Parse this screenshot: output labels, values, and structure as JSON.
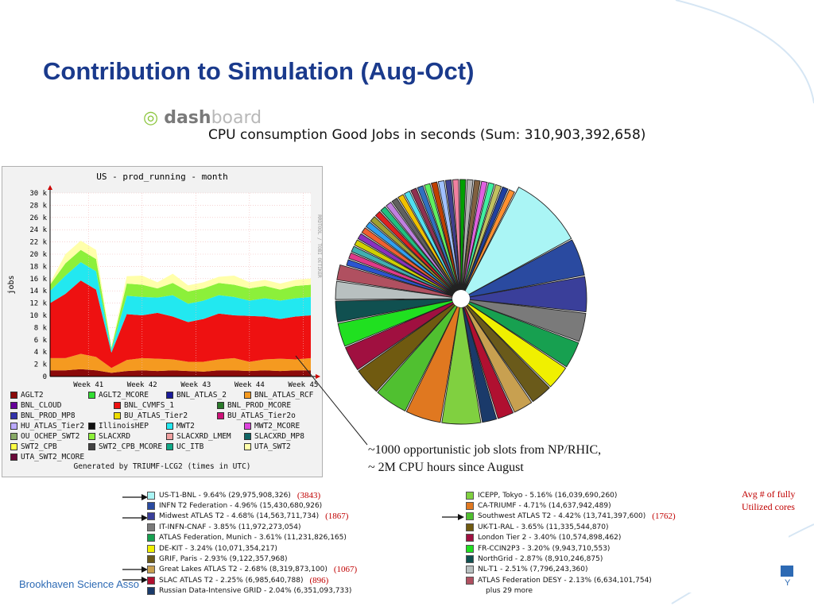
{
  "slide": {
    "title": "Contribution to Simulation (Aug-Oct)",
    "footer": "Brookhaven Science Asso",
    "footer_logo_text": "Y",
    "annotation_lines": [
      "~1000 opportunistic job slots from NP/RHIC,",
      "~ 2M CPU hours since August"
    ],
    "avg_note_lines": [
      "Avg # of fully",
      "Utilized cores"
    ]
  },
  "dashboard_logo": {
    "part1": "dash",
    "part2": "board",
    "icon_name": "dashboard-swirl-icon"
  },
  "chart_data": [
    {
      "type": "area",
      "title": "US - prod_running - month",
      "ylabel": "jobs",
      "xlabel": "",
      "ylim": [
        0,
        30000
      ],
      "y_ticks": [
        "0",
        "2 k",
        "4 k",
        "6 k",
        "8 k",
        "10 k",
        "12 k",
        "14 k",
        "16 k",
        "18 k",
        "20 k",
        "22 k",
        "24 k",
        "26 k",
        "28 k",
        "30 k"
      ],
      "x_ticks": [
        "Week 41",
        "Week 42",
        "Week 43",
        "Week 44",
        "Week 45"
      ],
      "side_label": "RRDTOOL / TOBI OETIKER",
      "note": "Generated by TRIUMF-LCG2 (times in UTC)",
      "grid": true,
      "x": [
        0,
        2,
        4,
        6,
        8,
        10,
        12,
        14,
        16,
        18,
        20,
        22,
        24,
        26,
        28,
        30,
        32,
        34
      ],
      "series": [
        {
          "name": "AGLT2",
          "color": "#8b0a0a",
          "values": [
            1000,
            1000,
            1200,
            1000,
            600,
            900,
            1000,
            900,
            1000,
            900,
            800,
            1000,
            1000,
            900,
            1000,
            900,
            1000,
            1000
          ]
        },
        {
          "name": "BNL_ATLAS_RCF",
          "color": "#f59a20",
          "values": [
            2000,
            2000,
            2500,
            2200,
            800,
            1800,
            2000,
            2000,
            1800,
            1500,
            1600,
            1800,
            2000,
            1500,
            1800,
            2000,
            1800,
            2000
          ]
        },
        {
          "name": "BNL_CVMFS_1",
          "color": "#ee1111",
          "values": [
            9000,
            10500,
            12000,
            11000,
            2500,
            7500,
            7000,
            7500,
            7000,
            6500,
            7000,
            7500,
            7000,
            7500,
            7000,
            6500,
            7000,
            7000
          ]
        },
        {
          "name": "MWT2",
          "color": "#22e8f0",
          "values": [
            2000,
            3000,
            3000,
            3000,
            500,
            3000,
            3000,
            2500,
            3500,
            3000,
            3000,
            3000,
            3000,
            2500,
            3000,
            3000,
            3000,
            3000
          ]
        },
        {
          "name": "SLACXRD",
          "color": "#8cf03a",
          "values": [
            1000,
            2000,
            2000,
            2000,
            300,
            2000,
            2000,
            1500,
            2000,
            2000,
            2000,
            2000,
            2000,
            2000,
            2000,
            1800,
            2000,
            2000
          ]
        },
        {
          "name": "UTA_SWT2",
          "color": "#ffffaa",
          "values": [
            300,
            1500,
            1500,
            1500,
            200,
            1200,
            1500,
            1000,
            1500,
            1000,
            1000,
            1000,
            1500,
            1000,
            1000,
            1000,
            1000,
            1000
          ]
        }
      ],
      "legend": [
        {
          "name": "AGLT2",
          "color": "#8b0a0a"
        },
        {
          "name": "AGLT2_MCORE",
          "color": "#33dd33"
        },
        {
          "name": "BNL_ATLAS_2",
          "color": "#1a1a99"
        },
        {
          "name": "BNL_ATLAS_RCF",
          "color": "#f59a20"
        },
        {
          "name": "BNL_CLOUD",
          "color": "#660099"
        },
        {
          "name": "BNL_CVMFS_1",
          "color": "#ee1111"
        },
        {
          "name": "BNL_PROD_MCORE",
          "color": "#2a7a2a"
        },
        {
          "name": "BNL_PROD_MP8",
          "color": "#3333aa"
        },
        {
          "name": "BU_ATLAS_Tier2",
          "color": "#eedd00"
        },
        {
          "name": "BU_ATLAS_Tier2o",
          "color": "#cc1177"
        },
        {
          "name": "HU_ATLAS_Tier2",
          "color": "#bbaaff"
        },
        {
          "name": "IllinoisHEP",
          "color": "#111111"
        },
        {
          "name": "MWT2",
          "color": "#22e8f0"
        },
        {
          "name": "MWT2_MCORE",
          "color": "#dd44dd"
        },
        {
          "name": "OU_OCHEP_SWT2",
          "color": "#88aa66"
        },
        {
          "name": "SLACXRD",
          "color": "#8cf03a"
        },
        {
          "name": "SLACXRD_LMEM",
          "color": "#f0a0a0"
        },
        {
          "name": "SLACXRD_MP8",
          "color": "#116666"
        },
        {
          "name": "SWT2_CPB",
          "color": "#ffff44"
        },
        {
          "name": "SWT2_CPB_MCORE",
          "color": "#444444"
        },
        {
          "name": "UC_ITB",
          "color": "#11aa88"
        },
        {
          "name": "UTA_SWT2",
          "color": "#ffffaa"
        },
        {
          "name": "UTA_SWT2_MCORE",
          "color": "#6a0a3a"
        }
      ]
    },
    {
      "type": "pie",
      "title": "CPU consumption Good Jobs in seconds (Sum: 310,903,392,658)",
      "slices": [
        {
          "label": "US-T1-BNL - 9.64% (29,975,908,326)",
          "value": 9.64,
          "color": "#aaf5f5",
          "note": "(3843)"
        },
        {
          "label": "INFN T2 Federation - 4.96% (15,430,680,926)",
          "value": 4.96,
          "color": "#2a4aa0"
        },
        {
          "label": "Midwest ATLAS T2 - 4.68% (14,563,711,734)",
          "value": 4.68,
          "color": "#3a3f9a",
          "note": "(1867)"
        },
        {
          "label": "IT-INFN-CNAF - 3.85% (11,972,273,054)",
          "value": 3.85,
          "color": "#7a7a7a"
        },
        {
          "label": "ATLAS Federation, Munich - 3.61% (11,231,826,165)",
          "value": 3.61,
          "color": "#17a050"
        },
        {
          "label": "DE-KIT - 3.24% (10,071,354,217)",
          "value": 3.24,
          "color": "#f0f000"
        },
        {
          "label": "GRIF, Paris - 2.93% (9,122,357,968)",
          "value": 2.93,
          "color": "#6a5a1a"
        },
        {
          "label": "Great Lakes ATLAS T2 - 2.68% (8,319,873,100)",
          "value": 2.68,
          "color": "#c8a050",
          "note": "(1067)"
        },
        {
          "label": "SLAC ATLAS T2 - 2.25% (6,985,640,788)",
          "value": 2.25,
          "color": "#b01030",
          "note": "(896)"
        },
        {
          "label": "Russian Data-Intensive GRID - 2.04% (6,351,093,733)",
          "value": 2.04,
          "color": "#1a3a6a"
        },
        {
          "label": "ICEPP, Tokyo - 5.16% (16,039,690,260)",
          "value": 5.16,
          "color": "#80d040"
        },
        {
          "label": "CA-TRIUMF - 4.71% (14,637,942,489)",
          "value": 4.71,
          "color": "#e07820"
        },
        {
          "label": "Southwest ATLAS T2 - 4.42% (13,741,397,600)",
          "value": 4.42,
          "color": "#50c030",
          "note": "(1762)"
        },
        {
          "label": "UK-T1-RAL - 3.65% (11,335,544,870)",
          "value": 3.65,
          "color": "#705a10"
        },
        {
          "label": "London Tier 2 - 3.40% (10,574,898,462)",
          "value": 3.4,
          "color": "#a01040"
        },
        {
          "label": "FR-CCIN2P3 - 3.20% (9,943,710,553)",
          "value": 3.2,
          "color": "#20e020"
        },
        {
          "label": "NorthGrid - 2.87% (8,910,246,875)",
          "value": 2.87,
          "color": "#105050"
        },
        {
          "label": "NL-T1 - 2.51% (7,796,243,360)",
          "value": 2.51,
          "color": "#b8c0c0"
        },
        {
          "label": "ATLAS Federation DESY - 2.13% (6,634,101,754)",
          "value": 2.13,
          "color": "#b05060"
        }
      ],
      "more_label": "plus 29 more"
    }
  ]
}
